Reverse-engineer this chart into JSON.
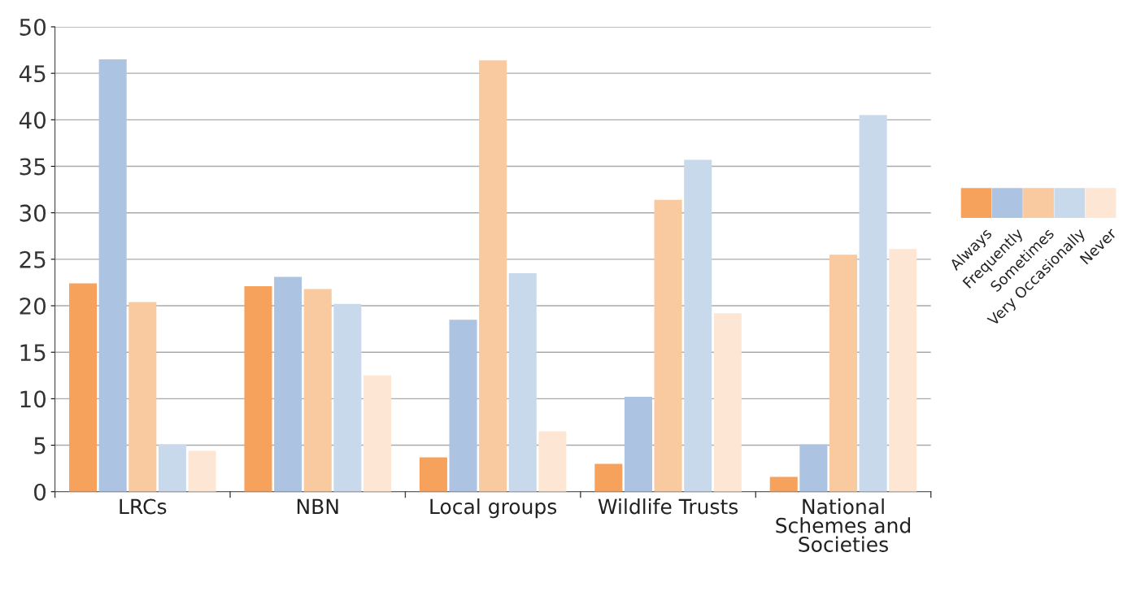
{
  "chart_data": {
    "type": "bar",
    "categories": [
      "LRCs",
      "NBN",
      "Local groups",
      "Wildlife Trusts",
      "National\nSchemes and\nSocieties"
    ],
    "series": [
      {
        "name": "Always",
        "color": "#f6a25c",
        "values": [
          22.4,
          22.1,
          3.7,
          3.0,
          1.6
        ]
      },
      {
        "name": "Frequently",
        "color": "#adc3e2",
        "values": [
          46.5,
          23.1,
          18.5,
          10.2,
          5.1
        ]
      },
      {
        "name": "Sometimes",
        "color": "#f9c9a0",
        "values": [
          20.4,
          21.8,
          46.4,
          31.4,
          25.5
        ]
      },
      {
        "name": "Very Occasionally",
        "color": "#c9d9ec",
        "values": [
          5.1,
          20.2,
          23.5,
          35.7,
          40.5
        ]
      },
      {
        "name": "Never",
        "color": "#fde6d4",
        "values": [
          4.4,
          12.5,
          6.5,
          19.2,
          26.1
        ]
      }
    ],
    "ylim": [
      0,
      50
    ],
    "yticks": [
      0,
      5,
      10,
      15,
      20,
      25,
      30,
      35,
      40,
      45,
      50
    ],
    "grid": "y",
    "legend": "right"
  }
}
